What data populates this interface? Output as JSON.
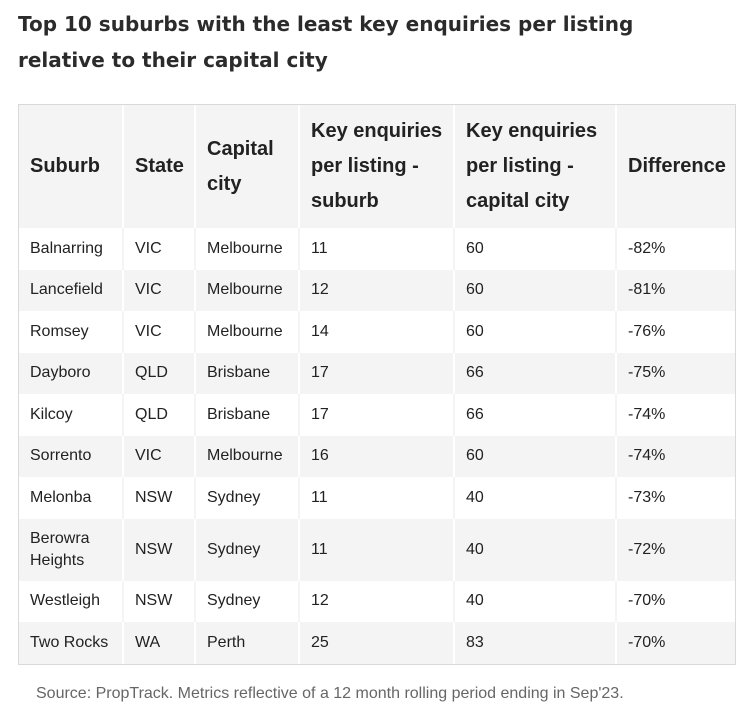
{
  "title": "Top 10 suburbs with the least key enquiries per listing relative to their capital city",
  "table": {
    "headers": {
      "suburb": "Suburb",
      "state": "State",
      "capital_city": "Capital city",
      "enquiries_suburb": "Key enquiries per listing - suburb",
      "enquiries_capital": "Key enquiries per listing - capital city",
      "difference": "Difference"
    },
    "rows": [
      {
        "suburb": "Balnarring",
        "state": "VIC",
        "capital_city": "Melbourne",
        "enquiries_suburb": "11",
        "enquiries_capital": "60",
        "difference": "-82%"
      },
      {
        "suburb": "Lancefield",
        "state": "VIC",
        "capital_city": "Melbourne",
        "enquiries_suburb": "12",
        "enquiries_capital": "60",
        "difference": "-81%"
      },
      {
        "suburb": "Romsey",
        "state": "VIC",
        "capital_city": "Melbourne",
        "enquiries_suburb": "14",
        "enquiries_capital": "60",
        "difference": "-76%"
      },
      {
        "suburb": "Dayboro",
        "state": "QLD",
        "capital_city": "Brisbane",
        "enquiries_suburb": "17",
        "enquiries_capital": "66",
        "difference": "-75%"
      },
      {
        "suburb": "Kilcoy",
        "state": "QLD",
        "capital_city": "Brisbane",
        "enquiries_suburb": "17",
        "enquiries_capital": "66",
        "difference": "-74%"
      },
      {
        "suburb": "Sorrento",
        "state": "VIC",
        "capital_city": "Melbourne",
        "enquiries_suburb": "16",
        "enquiries_capital": "60",
        "difference": "-74%"
      },
      {
        "suburb": "Melonba",
        "state": "NSW",
        "capital_city": "Sydney",
        "enquiries_suburb": "11",
        "enquiries_capital": "40",
        "difference": "-73%"
      },
      {
        "suburb": "Berowra Heights",
        "state": "NSW",
        "capital_city": "Sydney",
        "enquiries_suburb": "11",
        "enquiries_capital": "40",
        "difference": "-72%"
      },
      {
        "suburb": "Westleigh",
        "state": "NSW",
        "capital_city": "Sydney",
        "enquiries_suburb": "12",
        "enquiries_capital": "40",
        "difference": "-70%"
      },
      {
        "suburb": "Two Rocks",
        "state": "WA",
        "capital_city": "Perth",
        "enquiries_suburb": "25",
        "enquiries_capital": "83",
        "difference": "-70%"
      }
    ]
  },
  "source": "Source: PropTrack. Metrics reflective of a 12 month rolling period ending in Sep'23."
}
